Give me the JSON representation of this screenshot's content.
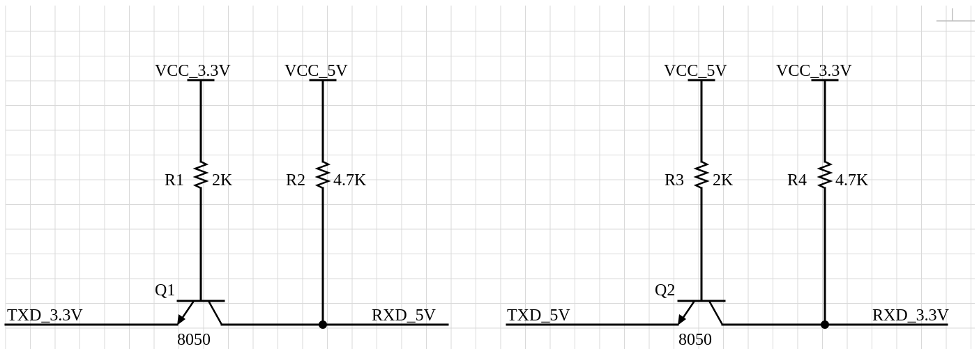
{
  "circuits": [
    {
      "transistor": {
        "ref": "Q1",
        "part": "8050"
      },
      "resistors": [
        {
          "ref": "R1",
          "value": "2K",
          "supply": "VCC_3.3V"
        },
        {
          "ref": "R2",
          "value": "4.7K",
          "supply": "VCC_5V"
        }
      ],
      "input": "TXD_3.3V",
      "output": "RXD_5V"
    },
    {
      "transistor": {
        "ref": "Q2",
        "part": "8050"
      },
      "resistors": [
        {
          "ref": "R3",
          "value": "2K",
          "supply": "VCC_5V"
        },
        {
          "ref": "R4",
          "value": "4.7K",
          "supply": "VCC_3.3V"
        }
      ],
      "input": "TXD_5V",
      "output": "RXD_3.3V"
    }
  ]
}
